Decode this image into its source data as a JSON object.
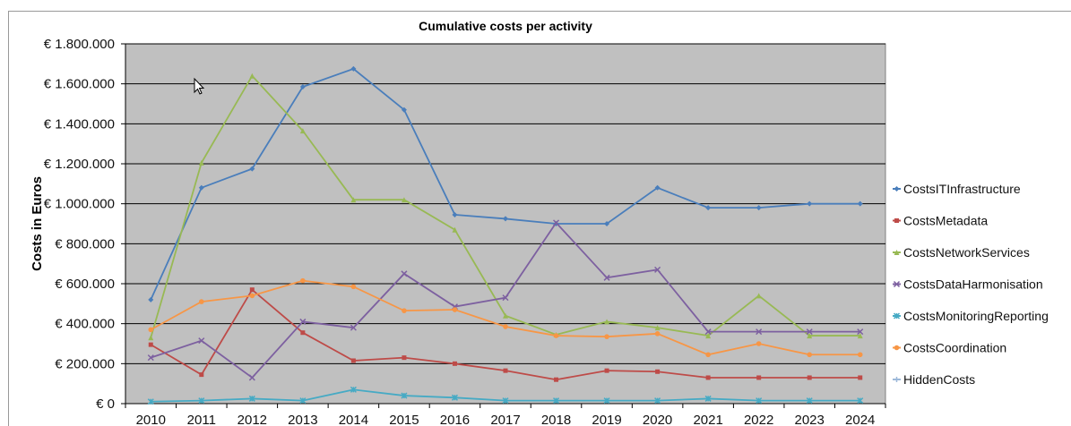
{
  "chart_data": {
    "type": "line",
    "title": "Cumulative costs per activity",
    "xlabel": "",
    "ylabel": "Costs in Euros",
    "categories": [
      "2010",
      "2011",
      "2012",
      "2013",
      "2014",
      "2015",
      "2016",
      "2017",
      "2018",
      "2019",
      "2020",
      "2021",
      "2022",
      "2023",
      "2024"
    ],
    "ylim": [
      0,
      1800000
    ],
    "yticks": [
      0,
      200000,
      400000,
      600000,
      800000,
      1000000,
      1200000,
      1400000,
      1600000,
      1800000
    ],
    "ytick_labels": [
      "€ 0",
      "€ 200.000",
      "€ 400.000",
      "€ 600.000",
      "€ 800.000",
      "€ 1.000.000",
      "€ 1.200.000",
      "€ 1.400.000",
      "€ 1.600.000",
      "€ 1.800.000"
    ],
    "grid": "horizontal",
    "plot_background": "#c0c0c0",
    "legend_position": "right",
    "series": [
      {
        "name": "CostsITInfrastructure",
        "color": "#4a7ebb",
        "marker": "diamond",
        "values": [
          520000,
          1080000,
          1175000,
          1585000,
          1675000,
          1470000,
          945000,
          925000,
          900000,
          900000,
          1080000,
          980000,
          980000,
          1000000,
          1000000
        ]
      },
      {
        "name": "CostsMetadata",
        "color": "#be4b48",
        "marker": "square",
        "values": [
          295000,
          145000,
          570000,
          355000,
          215000,
          230000,
          200000,
          165000,
          120000,
          165000,
          160000,
          130000,
          130000,
          130000,
          130000
        ]
      },
      {
        "name": "CostsNetworkServices",
        "color": "#98b954",
        "marker": "triangle",
        "values": [
          330000,
          1205000,
          1640000,
          1365000,
          1020000,
          1020000,
          870000,
          440000,
          345000,
          410000,
          380000,
          340000,
          540000,
          340000,
          340000
        ]
      },
      {
        "name": "CostsDataHarmonisation",
        "color": "#7d60a0",
        "marker": "x",
        "values": [
          230000,
          315000,
          130000,
          410000,
          380000,
          650000,
          485000,
          530000,
          905000,
          630000,
          670000,
          360000,
          360000,
          360000,
          360000
        ]
      },
      {
        "name": "CostsMonitoringReporting",
        "color": "#46aac4",
        "marker": "star",
        "values": [
          10000,
          15000,
          25000,
          15000,
          70000,
          40000,
          30000,
          15000,
          15000,
          15000,
          15000,
          25000,
          15000,
          15000,
          15000
        ]
      },
      {
        "name": "CostsCoordination",
        "color": "#f79646",
        "marker": "circle",
        "values": [
          370000,
          510000,
          540000,
          615000,
          585000,
          465000,
          470000,
          385000,
          340000,
          335000,
          350000,
          245000,
          300000,
          245000,
          245000
        ]
      },
      {
        "name": "HiddenCosts",
        "color": "#9cb8d9",
        "marker": "plus",
        "values": [
          0,
          0,
          0,
          0,
          0,
          0,
          0,
          0,
          0,
          0,
          0,
          0,
          0,
          0,
          0
        ]
      }
    ]
  }
}
